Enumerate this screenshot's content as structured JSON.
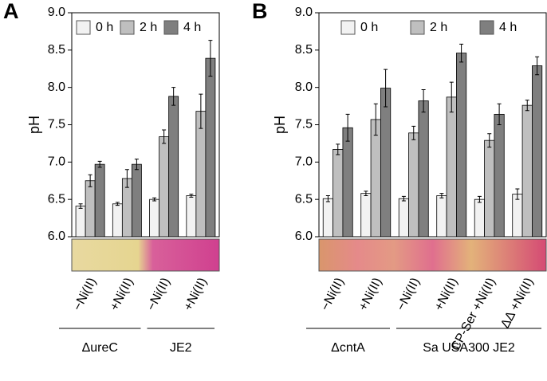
{
  "chart_data": [
    {
      "type": "bar",
      "panel": "A",
      "y_label": "pH",
      "categories": [
        "−Ni(II)",
        "+Ni(II)",
        "−Ni(II)",
        "+Ni(II)"
      ],
      "group_labels": [
        "ΔureC",
        "JE2"
      ],
      "series": [
        {
          "name": "0 h",
          "color": "#f2f2f2",
          "values": [
            6.41,
            6.44,
            6.5,
            6.55
          ],
          "errors": [
            0.03,
            0.02,
            0.02,
            0.02
          ]
        },
        {
          "name": "2 h",
          "color": "#bfbfbf",
          "values": [
            6.75,
            6.78,
            7.34,
            7.68
          ],
          "errors": [
            0.08,
            0.12,
            0.09,
            0.23
          ]
        },
        {
          "name": "4 h",
          "color": "#7f7f7f",
          "values": [
            6.97,
            6.97,
            7.88,
            8.39
          ],
          "errors": [
            0.04,
            0.07,
            0.12,
            0.24
          ]
        }
      ],
      "ylim": [
        6,
        9
      ],
      "yticks": [
        {
          "value": 6,
          "label": "6.0"
        },
        {
          "value": 6.5,
          "label": "6.5"
        },
        {
          "value": 7,
          "label": "7.0"
        },
        {
          "value": 7.5,
          "label": "7.5"
        },
        {
          "value": 8,
          "label": "8.0"
        },
        {
          "value": 8.5,
          "label": "8.5"
        },
        {
          "value": 9,
          "label": "9.0"
        }
      ],
      "legend": "top-left"
    },
    {
      "type": "bar",
      "panel": "B",
      "y_label": "pH",
      "categories": [
        "−Ni(II)",
        "+Ni(II)",
        "−Ni(II)",
        "+Ni(II)",
        "CP-Ser +Ni(II)",
        "ΔΔ +Ni(II)"
      ],
      "group_labels": [
        "ΔcntA",
        "Sa USA300 JE2"
      ],
      "series": [
        {
          "name": "0 h",
          "color": "#f2f2f2",
          "values": [
            6.51,
            6.58,
            6.51,
            6.55,
            6.5,
            6.57
          ],
          "errors": [
            0.04,
            0.03,
            0.03,
            0.03,
            0.04,
            0.07
          ]
        },
        {
          "name": "2 h",
          "color": "#bfbfbf",
          "values": [
            7.17,
            7.57,
            7.39,
            7.87,
            7.29,
            7.76
          ],
          "errors": [
            0.07,
            0.21,
            0.09,
            0.2,
            0.09,
            0.07
          ]
        },
        {
          "name": "4 h",
          "color": "#7f7f7f",
          "values": [
            7.46,
            7.99,
            7.82,
            8.46,
            7.64,
            8.29
          ],
          "errors": [
            0.18,
            0.25,
            0.15,
            0.12,
            0.14,
            0.12
          ]
        }
      ],
      "ylim": [
        6,
        9
      ],
      "yticks": [
        {
          "value": 6,
          "label": "6.0"
        },
        {
          "value": 6.5,
          "label": "6.5"
        },
        {
          "value": 7,
          "label": "7.0"
        },
        {
          "value": 7.5,
          "label": "7.5"
        },
        {
          "value": 8,
          "label": "8.0"
        },
        {
          "value": 8.5,
          "label": "8.5"
        },
        {
          "value": 9,
          "label": "9.0"
        }
      ],
      "legend": "top-left"
    }
  ]
}
